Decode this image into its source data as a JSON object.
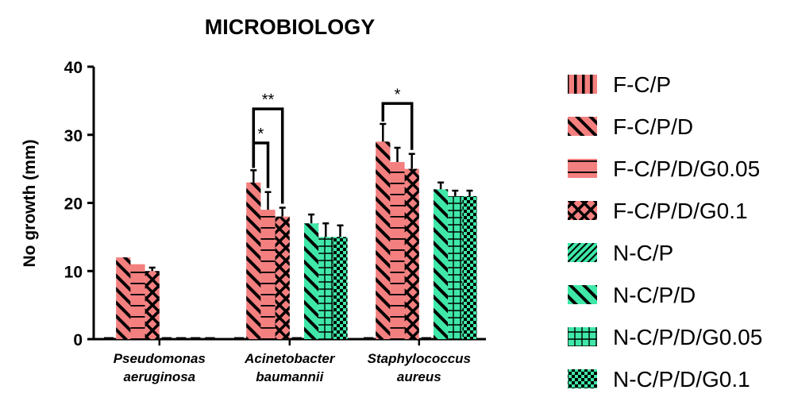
{
  "chart_data": {
    "type": "bar",
    "title": "MICROBIOLOGY",
    "xlabel": "",
    "ylabel": "No growth (mm)",
    "ylim": [
      0,
      40
    ],
    "yticks": [
      "0",
      "10",
      "20",
      "30",
      "40"
    ],
    "grid": false,
    "legend_position": "right",
    "categories": [
      [
        "Pseudomonas",
        "aeruginosa"
      ],
      [
        "Acinetobacter",
        "baumannii"
      ],
      [
        "Staphylococcus",
        "aureus"
      ]
    ],
    "series": [
      {
        "name": "F-C/P",
        "color": "#F47F7F",
        "pattern": "vertical",
        "values": [
          0,
          0,
          0
        ],
        "errors": [
          0,
          0,
          0
        ]
      },
      {
        "name": "F-C/P/D",
        "color": "#F47F7F",
        "pattern": "diagonal-back",
        "values": [
          12,
          23,
          29
        ],
        "errors": [
          0,
          1.8,
          2.6
        ]
      },
      {
        "name": "F-C/P/D/G0.05",
        "color": "#F47F7F",
        "pattern": "horizontal",
        "values": [
          11,
          19,
          26
        ],
        "errors": [
          0,
          2.6,
          2.1
        ]
      },
      {
        "name": "F-C/P/D/G0.1",
        "color": "#F47F7F",
        "pattern": "crosshatch-diamond",
        "values": [
          10,
          18,
          25
        ],
        "errors": [
          0.5,
          1.3,
          2.2
        ]
      },
      {
        "name": "N-C/P",
        "color": "#3FE8A8",
        "pattern": "diagonal-forward",
        "values": [
          0,
          0,
          0
        ],
        "errors": [
          0,
          0,
          0
        ]
      },
      {
        "name": "N-C/P/D",
        "color": "#3FE8A8",
        "pattern": "diagonal-back",
        "values": [
          0,
          17,
          22
        ],
        "errors": [
          0,
          1.3,
          1.0
        ]
      },
      {
        "name": "N-C/P/D/G0.05",
        "color": "#3FE8A8",
        "pattern": "grid",
        "values": [
          0,
          15,
          21
        ],
        "errors": [
          0,
          2.0,
          0.8
        ]
      },
      {
        "name": "N-C/P/D/G0.1",
        "color": "#3FE8A8",
        "pattern": "checker",
        "values": [
          0,
          15,
          21
        ],
        "errors": [
          0,
          1.7,
          0.8
        ]
      }
    ],
    "significance": [
      {
        "category": 1,
        "from_series": 1,
        "to_series": 2,
        "label": "*",
        "level": 28.8
      },
      {
        "category": 1,
        "from_series": 1,
        "to_series": 3,
        "label": "**",
        "level": 33.8
      },
      {
        "category": 2,
        "from_series": 1,
        "to_series": 3,
        "label": "*",
        "level": 34.6
      }
    ]
  }
}
